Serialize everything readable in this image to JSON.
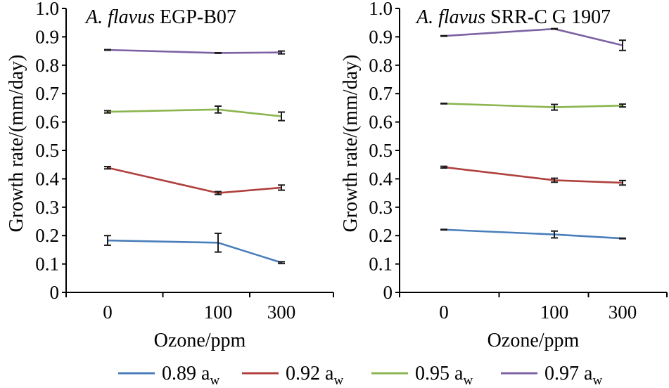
{
  "chart_data": [
    {
      "type": "line",
      "title": {
        "italic": "A. flavus",
        "rest": " EGP-B07"
      },
      "xlabel": "Ozone/ppm",
      "ylabel": "Growth rate/(mm/day)",
      "categories": [
        "0",
        "100",
        "300"
      ],
      "ylim": [
        0,
        1.0
      ],
      "yticks": [
        "0",
        "0.1",
        "0.2",
        "0.3",
        "0.4",
        "0.5",
        "0.6",
        "0.7",
        "0.8",
        "0.9",
        "1.0"
      ],
      "series": [
        {
          "name": "0.89 a_w",
          "values": [
            0.183,
            0.175,
            0.105
          ],
          "errors": [
            0.017,
            0.033,
            0.003
          ]
        },
        {
          "name": "0.92 a_w",
          "values": [
            0.439,
            0.35,
            0.369
          ],
          "errors": [
            0.004,
            0.005,
            0.009
          ]
        },
        {
          "name": "0.95 a_w",
          "values": [
            0.636,
            0.644,
            0.62
          ],
          "errors": [
            0.004,
            0.012,
            0.015
          ]
        },
        {
          "name": "0.97 a_w",
          "values": [
            0.854,
            0.843,
            0.845
          ],
          "errors": [
            0.001,
            0.001,
            0.005
          ]
        }
      ]
    },
    {
      "type": "line",
      "title": {
        "italic": "A. flavus",
        "rest": " SRR-C G 1907"
      },
      "xlabel": "Ozone/ppm",
      "ylabel": "Growth rate/(mm/day)",
      "categories": [
        "0",
        "100",
        "300"
      ],
      "ylim": [
        0,
        1.0
      ],
      "yticks": [
        "0",
        "0.1",
        "0.2",
        "0.3",
        "0.4",
        "0.5",
        "0.6",
        "0.7",
        "0.8",
        "0.9",
        "1.0"
      ],
      "series": [
        {
          "name": "0.89 a_w",
          "values": [
            0.221,
            0.204,
            0.19
          ],
          "errors": [
            0.001,
            0.012,
            0.001
          ]
        },
        {
          "name": "0.92 a_w",
          "values": [
            0.441,
            0.395,
            0.386
          ],
          "errors": [
            0.003,
            0.007,
            0.008
          ]
        },
        {
          "name": "0.95 a_w",
          "values": [
            0.665,
            0.652,
            0.658
          ],
          "errors": [
            0.001,
            0.01,
            0.005
          ]
        },
        {
          "name": "0.97 a_w",
          "values": [
            0.903,
            0.928,
            0.87
          ],
          "errors": [
            0.001,
            0.001,
            0.018
          ]
        }
      ]
    }
  ],
  "legend": {
    "placement": "bottom",
    "items": [
      {
        "value": "0.89",
        "label": "a",
        "sub": "w",
        "color": "#4a7ebb"
      },
      {
        "value": "0.92",
        "label": "a",
        "sub": "w",
        "color": "#b0403e"
      },
      {
        "value": "0.95",
        "label": "a",
        "sub": "w",
        "color": "#8bb54f"
      },
      {
        "value": "0.97",
        "label": "a",
        "sub": "w",
        "color": "#7d62a3"
      }
    ]
  },
  "colors": [
    "#4a7ebb",
    "#b0403e",
    "#8bb54f",
    "#7d62a3"
  ]
}
